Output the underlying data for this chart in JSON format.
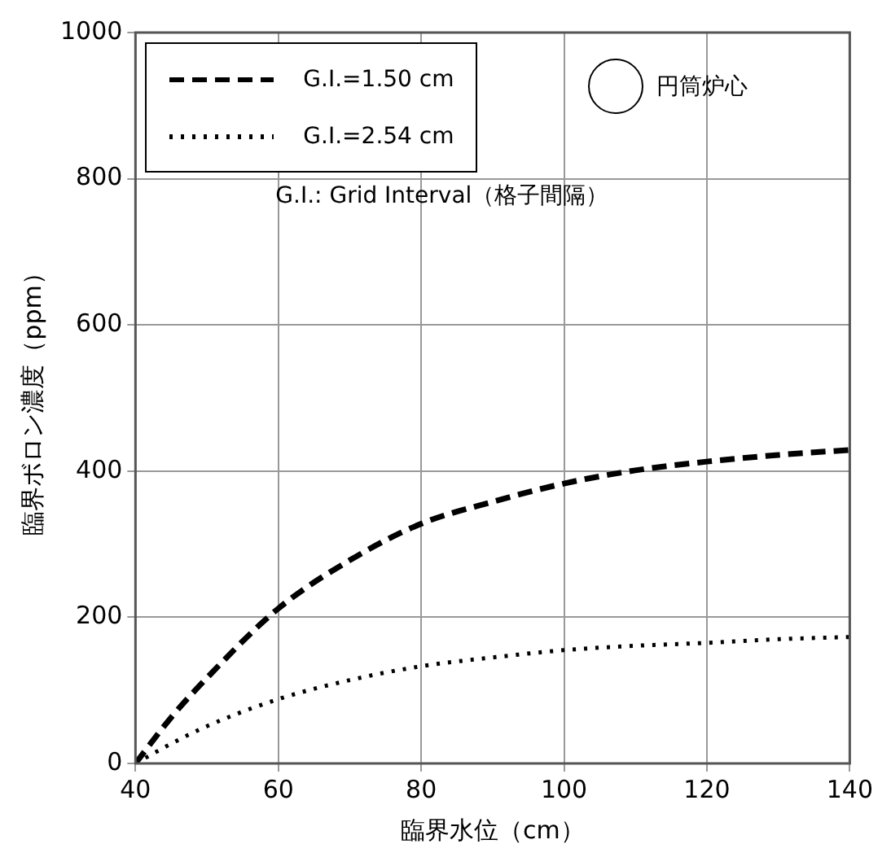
{
  "chart_data": {
    "type": "line",
    "xlabel": "臨界水位（cm）",
    "ylabel": "臨界ボロン濃度（ppm）",
    "x": [
      40,
      45,
      50,
      60,
      70,
      80,
      90,
      100,
      110,
      120,
      130,
      140
    ],
    "series": [
      {
        "name": "G.I.=1.50 cm",
        "color": "#000000",
        "line_style": "dashed",
        "values": [
          0,
          63,
          117,
          212,
          278,
          328,
          358,
          383,
          401,
          413,
          422,
          429
        ]
      },
      {
        "name": "G.I.=2.54 cm",
        "color": "#000000",
        "line_style": "dotted",
        "values": [
          0,
          27,
          51,
          88,
          114,
          133,
          145,
          155,
          161,
          165,
          170,
          173
        ]
      }
    ],
    "xlim": [
      40,
      140
    ],
    "xticks": [
      40,
      60,
      80,
      100,
      120,
      140
    ],
    "ylim": [
      0,
      1000
    ],
    "yticks": [
      0,
      200,
      400,
      600,
      800,
      1000
    ],
    "grid": true,
    "legend": "top left",
    "marker": "none",
    "annotations": [
      "G.I.: Grid Interval（格子間隔）",
      "円筒炉心"
    ]
  }
}
